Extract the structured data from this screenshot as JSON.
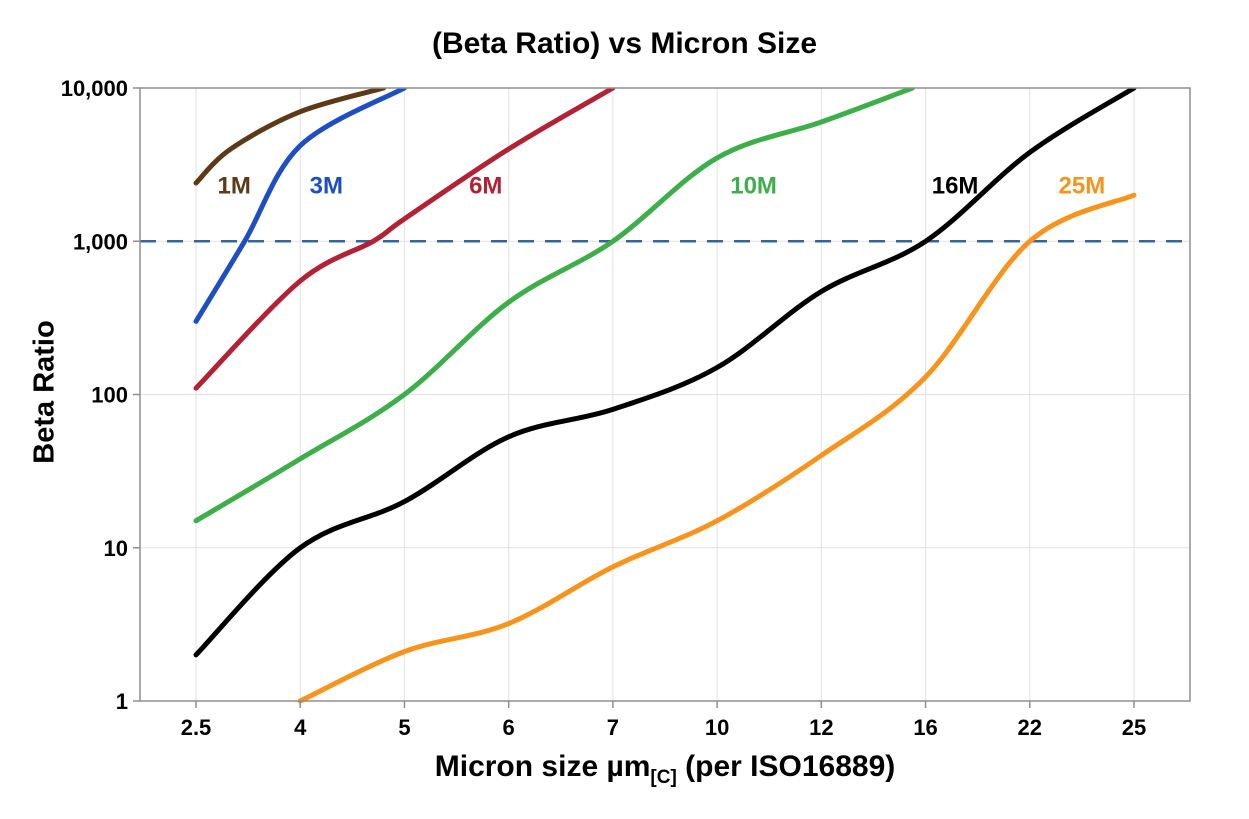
{
  "title": "(Beta Ratio) vs Micron Size",
  "y_axis": {
    "label": "Beta Ratio",
    "tick_labels": [
      "1",
      "10",
      "100",
      "1,000",
      "10,000"
    ],
    "tick_values": [
      1,
      10,
      100,
      1000,
      10000
    ]
  },
  "x_axis": {
    "label_main": "Micron size µm",
    "label_sub": "[C]",
    "label_rest": " (per ISO16889)",
    "categories": [
      2.5,
      4,
      5,
      6,
      7,
      10,
      12,
      16,
      22,
      25
    ],
    "tick_labels": [
      "2.5",
      "4",
      "5",
      "6",
      "7",
      "10",
      "12",
      "16",
      "22",
      "25"
    ]
  },
  "reference_line": {
    "value": 1000,
    "color": "#336699",
    "style": "dashed"
  },
  "colors": {
    "grid": "#e2e2e2",
    "frame": "#8f8f8f",
    "text": "#000000"
  },
  "chart_data": {
    "type": "line",
    "title": "(Beta Ratio) vs Micron Size",
    "xlabel": "Micron size µm[C] (per ISO16889)",
    "ylabel": "Beta Ratio",
    "x_scale": "categorical",
    "y_scale": "log10",
    "ylim": [
      1,
      10000
    ],
    "grid": true,
    "legend_position": "labels-on-lines",
    "series": [
      {
        "name": "1M",
        "color": "#5C3A17",
        "label_pos": {
          "x": 3.05,
          "y": 2300
        },
        "points": [
          [
            2.5,
            2400
          ],
          [
            3,
            4000
          ],
          [
            4,
            7000
          ],
          [
            4.8,
            10000
          ]
        ]
      },
      {
        "name": "3M",
        "color": "#1E4FC2",
        "label_pos": {
          "x": 4.25,
          "y": 2300
        },
        "points": [
          [
            2.5,
            300
          ],
          [
            3.2,
            1000
          ],
          [
            4,
            4200
          ],
          [
            5,
            10000
          ]
        ]
      },
      {
        "name": "6M",
        "color": "#B22234",
        "label_pos": {
          "x": 5.78,
          "y": 2300
        },
        "points": [
          [
            2.5,
            110
          ],
          [
            4,
            550
          ],
          [
            4.7,
            1000
          ],
          [
            5,
            1400
          ],
          [
            6,
            4000
          ],
          [
            7,
            10000
          ]
        ]
      },
      {
        "name": "10M",
        "color": "#3DAE49",
        "label_pos": {
          "x": 10.7,
          "y": 2300
        },
        "points": [
          [
            2.5,
            15
          ],
          [
            4,
            38
          ],
          [
            5,
            100
          ],
          [
            6,
            400
          ],
          [
            7,
            1000
          ],
          [
            10,
            3500
          ],
          [
            12,
            6000
          ],
          [
            15.5,
            10000
          ]
        ]
      },
      {
        "name": "16M",
        "color": "#000000",
        "label_pos": {
          "x": 17.7,
          "y": 2300
        },
        "points": [
          [
            2.5,
            2
          ],
          [
            4,
            10
          ],
          [
            5,
            20
          ],
          [
            6,
            53
          ],
          [
            7,
            80
          ],
          [
            10,
            150
          ],
          [
            12,
            470
          ],
          [
            16,
            1000
          ],
          [
            22,
            3800
          ],
          [
            25,
            10000
          ]
        ]
      },
      {
        "name": "25M",
        "color": "#F7941E",
        "label_pos": {
          "x": 23.5,
          "y": 2300
        },
        "points": [
          [
            4,
            1
          ],
          [
            5,
            2.1
          ],
          [
            6,
            3.2
          ],
          [
            7,
            7.5
          ],
          [
            10,
            15
          ],
          [
            12,
            40
          ],
          [
            16,
            130
          ],
          [
            22,
            1000
          ],
          [
            25,
            2000
          ]
        ]
      }
    ]
  }
}
